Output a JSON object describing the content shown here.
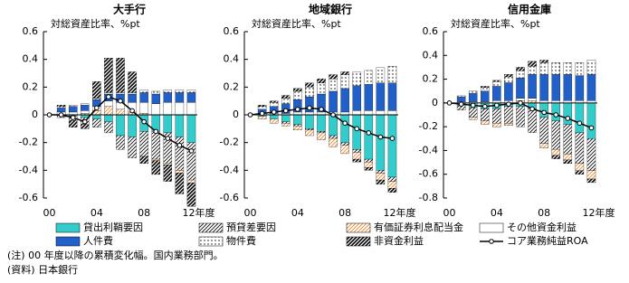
{
  "chart_data": [
    {
      "type": "bar",
      "stacked": true,
      "title": "大手行",
      "subtitle": "対総資産比率、%pt",
      "categories": [
        "00",
        null,
        null,
        null,
        "04",
        null,
        null,
        null,
        "08",
        null,
        null,
        null,
        "12年度"
      ],
      "ylim": [
        -0.6,
        0.6
      ],
      "yticks": [
        -0.6,
        -0.4,
        -0.2,
        0.0,
        0.2,
        0.4,
        0.6
      ],
      "series": [
        {
          "name": "貸出利鞘要因",
          "color": "#33cccc",
          "pattern": "solid",
          "values": [
            null,
            0,
            -0.01,
            -0.02,
            -0.03,
            -0.05,
            -0.15,
            -0.16,
            -0.12,
            -0.12,
            -0.13,
            -0.16,
            -0.2
          ]
        },
        {
          "name": "預貸差要因",
          "color": "#000000",
          "pattern": "hatch",
          "values": [
            null,
            -0.02,
            -0.03,
            -0.05,
            -0.06,
            -0.08,
            -0.1,
            -0.15,
            -0.18,
            -0.2,
            -0.22,
            -0.24,
            -0.27
          ]
        },
        {
          "name": "有価証券利息配当金",
          "color": "#f08020",
          "pattern": "hatch",
          "values": [
            null,
            0,
            0,
            0.01,
            0.03,
            0.06,
            0.04,
            0.02,
            0.01,
            -0.01,
            -0.01,
            -0.02,
            -0.02
          ]
        },
        {
          "name": "その他資金利益",
          "color": "#ffffff",
          "pattern": "solid",
          "values": [
            null,
            0.02,
            0.02,
            0.02,
            0.03,
            0.04,
            0.05,
            0.07,
            0.08,
            0.08,
            0.09,
            0.09,
            0.09
          ]
        },
        {
          "name": "人件費",
          "color": "#2060c8",
          "pattern": "solid",
          "values": [
            null,
            0.03,
            0.04,
            0.04,
            0.05,
            0.05,
            0.06,
            0.06,
            0.07,
            0.07,
            0.07,
            0.07,
            0.07
          ]
        },
        {
          "name": "物件費",
          "color": "#000000",
          "pattern": "dots",
          "values": [
            null,
            0.01,
            0.01,
            0.01,
            0.01,
            0.01,
            0.01,
            0.01,
            0.02,
            0.02,
            0.02,
            0.02,
            0.02
          ]
        },
        {
          "name": "非資金利益",
          "color": "#000000",
          "pattern": "dense-hatch",
          "values": [
            null,
            0.01,
            -0.05,
            -0.03,
            0.12,
            0.25,
            0.25,
            0.15,
            -0.05,
            -0.1,
            -0.12,
            -0.15,
            -0.17
          ]
        },
        {
          "name": "コア業務純益ROA",
          "color": "#000000",
          "type": "line",
          "values": [
            0,
            0,
            -0.02,
            -0.05,
            0.05,
            0.13,
            0.1,
            0.03,
            -0.05,
            -0.12,
            -0.17,
            -0.22,
            -0.26
          ]
        }
      ]
    },
    {
      "type": "bar",
      "stacked": true,
      "title": "地域銀行",
      "subtitle": "対総資産比率、%pt",
      "categories": [
        "00",
        null,
        null,
        null,
        "04",
        null,
        null,
        null,
        "08",
        null,
        null,
        null,
        "12年度"
      ],
      "ylim": [
        -0.6,
        0.6
      ],
      "yticks": [
        -0.6,
        -0.4,
        -0.2,
        0.0,
        0.2,
        0.4,
        0.6
      ],
      "series": [
        {
          "values": [
            null,
            -0.01,
            -0.03,
            -0.05,
            -0.07,
            -0.1,
            -0.12,
            -0.15,
            -0.2,
            -0.25,
            -0.32,
            -0.4,
            -0.45
          ]
        },
        {
          "values": [
            null,
            0,
            0,
            -0.01,
            -0.01,
            -0.01,
            -0.01,
            -0.02,
            -0.02,
            -0.02,
            -0.02,
            -0.02,
            -0.03
          ]
        },
        {
          "values": [
            null,
            -0.02,
            -0.03,
            -0.02,
            -0.03,
            -0.04,
            -0.05,
            -0.06,
            -0.06,
            -0.05,
            -0.04,
            -0.05,
            -0.05
          ]
        },
        {
          "values": [
            null,
            0.01,
            0.01,
            0.01,
            0.02,
            0.02,
            0.02,
            0.02,
            0.02,
            0.03,
            0.03,
            0.03,
            0.03
          ]
        },
        {
          "values": [
            null,
            0.03,
            0.05,
            0.07,
            0.09,
            0.11,
            0.13,
            0.15,
            0.17,
            0.18,
            0.19,
            0.2,
            0.2
          ]
        },
        {
          "values": [
            null,
            0.02,
            0.03,
            0.04,
            0.06,
            0.07,
            0.08,
            0.09,
            0.1,
            0.1,
            0.1,
            0.11,
            0.12
          ]
        },
        {
          "values": [
            null,
            0.01,
            0.01,
            0.02,
            0.02,
            0.03,
            0.03,
            0.03,
            0.02,
            -0.02,
            -0.02,
            -0.03,
            -0.03
          ]
        },
        {
          "type": "line",
          "values": [
            0,
            0.01,
            0.02,
            0.03,
            0.04,
            0.05,
            0.04,
            0,
            -0.06,
            -0.1,
            -0.13,
            -0.16,
            -0.17
          ]
        }
      ]
    },
    {
      "type": "bar",
      "stacked": true,
      "title": "信用金庫",
      "subtitle": "対総資産比率、%pt",
      "categories": [
        "00",
        null,
        null,
        null,
        "04",
        null,
        null,
        null,
        "08",
        null,
        null,
        null,
        "12年度"
      ],
      "ylim": [
        -0.8,
        0.6
      ],
      "yticks": [
        -0.8,
        -0.6,
        -0.4,
        -0.2,
        0.0,
        0.2,
        0.4,
        0.6
      ],
      "series": [
        {
          "values": [
            null,
            -0.02,
            -0.04,
            -0.05,
            -0.05,
            -0.03,
            -0.03,
            -0.05,
            -0.12,
            -0.15,
            -0.18,
            -0.25,
            -0.3
          ]
        },
        {
          "values": [
            null,
            -0.04,
            -0.08,
            -0.1,
            -0.12,
            -0.14,
            -0.17,
            -0.2,
            -0.22,
            -0.24,
            -0.25,
            -0.26,
            -0.27
          ]
        },
        {
          "values": [
            null,
            0,
            -0.02,
            -0.03,
            -0.03,
            -0.02,
            0.02,
            0.02,
            -0.04,
            -0.05,
            -0.05,
            -0.06,
            -0.07
          ]
        },
        {
          "values": [
            null,
            0.01,
            0.01,
            0.01,
            0.02,
            0.02,
            0.02,
            0.02,
            0.02,
            0.02,
            0.02,
            0.02,
            0.02
          ]
        },
        {
          "values": [
            null,
            0.04,
            0.07,
            0.09,
            0.12,
            0.15,
            0.17,
            0.2,
            0.22,
            0.22,
            0.22,
            0.21,
            0.22
          ]
        },
        {
          "values": [
            null,
            0.01,
            0.02,
            0.03,
            0.04,
            0.05,
            0.06,
            0.07,
            0.1,
            0.1,
            0.1,
            0.11,
            0.12
          ]
        },
        {
          "values": [
            null,
            0,
            0,
            0.01,
            0.01,
            0.02,
            0.03,
            0.04,
            0.02,
            -0.03,
            -0.03,
            -0.03,
            -0.03
          ]
        },
        {
          "type": "line",
          "values": [
            0,
            -0.01,
            -0.02,
            -0.03,
            -0.02,
            -0.01,
            0,
            -0.05,
            -0.08,
            -0.1,
            -0.13,
            -0.17,
            -0.21
          ]
        }
      ]
    }
  ],
  "notes": [
    "(注) 00 年度以降の累積変化幅。国内業務部門。",
    "(資料) 日本銀行"
  ]
}
